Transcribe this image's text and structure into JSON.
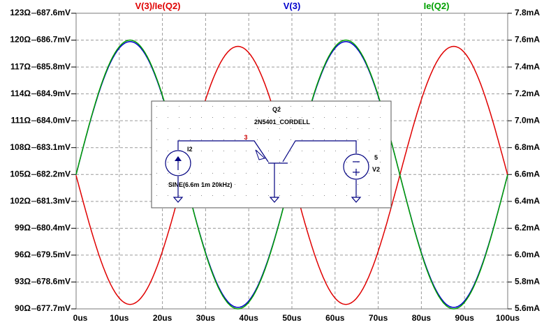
{
  "chart_data": {
    "type": "line",
    "x": {
      "min": 0,
      "max": 100,
      "unit": "us",
      "ticks": [
        "0us",
        "10us",
        "20us",
        "30us",
        "40us",
        "50us",
        "60us",
        "70us",
        "80us",
        "90us",
        "100us"
      ]
    },
    "y_left_ohm": {
      "min": 90,
      "max": 123,
      "ticks": [
        "90Ω",
        "93Ω",
        "96Ω",
        "99Ω",
        "102Ω",
        "105Ω",
        "108Ω",
        "111Ω",
        "114Ω",
        "117Ω",
        "120Ω",
        "123Ω"
      ]
    },
    "y_left_mv": {
      "min": 677.7,
      "max": 687.6,
      "ticks": [
        "677.7mV",
        "678.6mV",
        "679.5mV",
        "680.4mV",
        "681.3mV",
        "682.2mV",
        "683.1mV",
        "684.0mV",
        "684.9mV",
        "685.8mV",
        "686.7mV",
        "687.6mV"
      ]
    },
    "y_right": {
      "min": 5.6,
      "max": 7.8,
      "ticks": [
        "5.6mA",
        "5.8mA",
        "6.0mA",
        "6.2mA",
        "6.4mA",
        "6.6mA",
        "6.8mA",
        "7.0mA",
        "7.2mA",
        "7.4mA",
        "7.6mA",
        "7.8mA"
      ]
    },
    "grid": true,
    "series": [
      {
        "name": "V(3)/Ie(Q2)",
        "color": "#e00000",
        "axis": "left_ohm",
        "offset": 104.9,
        "amplitude": 14.4,
        "frequency_khz": 20,
        "phase_deg": 180
      },
      {
        "name": "V(3)",
        "color": "#0000cc",
        "axis": "left_mv",
        "offset": 682.2,
        "amplitude": 4.45,
        "frequency_khz": 20,
        "phase_deg": 0
      },
      {
        "name": "Ie(Q2)",
        "color": "#00a000",
        "axis": "right",
        "offset": 6.6,
        "amplitude": 1.0,
        "frequency_khz": 20,
        "phase_deg": 0
      }
    ]
  },
  "schematic": {
    "transistor_name": "Q2",
    "transistor_model": "2N5401_CORDELL",
    "node_label": "3",
    "current_source_name": "I2",
    "current_source_value": "SINE(6.6m 1m 20kHz)",
    "voltage_source_value": "5",
    "voltage_source_name": "V2"
  }
}
